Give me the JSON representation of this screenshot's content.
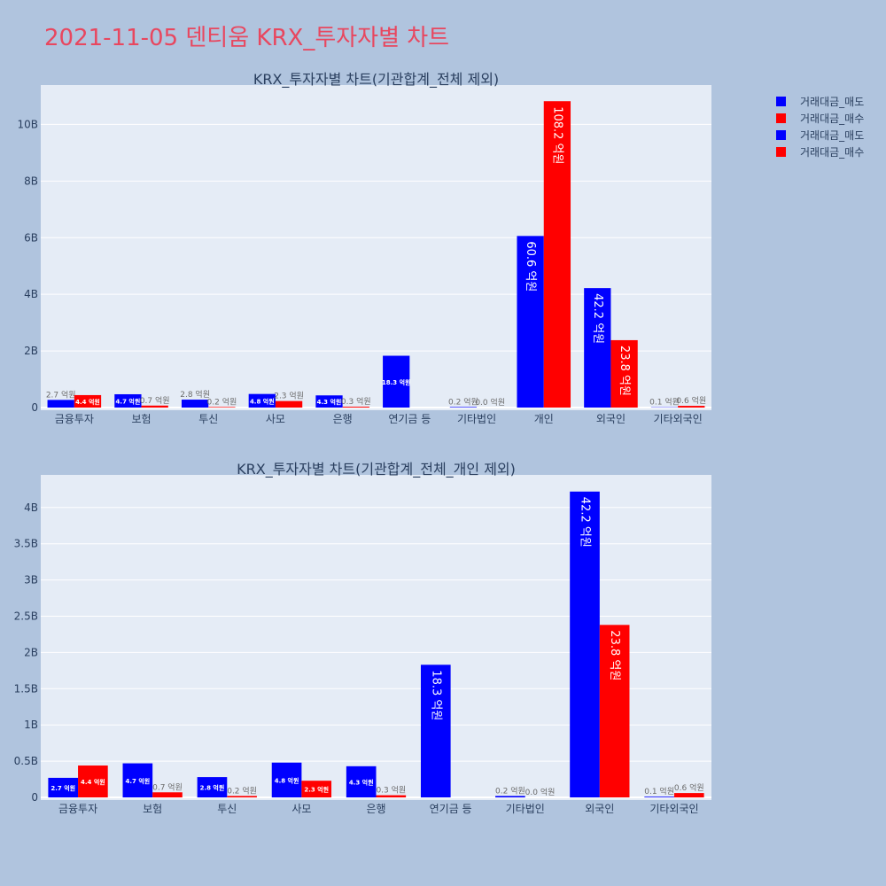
{
  "page": {
    "title": "2021-11-05 덴티움 KRX_투자자별 차트"
  },
  "legend": {
    "entries": [
      {
        "label": "거래대금_매도",
        "color": "#0000ff"
      },
      {
        "label": "거래대금_매수",
        "color": "#ff0000"
      },
      {
        "label": "거래대금_매도",
        "color": "#0000ff"
      },
      {
        "label": "거래대금_매수",
        "color": "#ff0000"
      }
    ]
  },
  "colors": {
    "sell": "#0000ff",
    "buy": "#ff0000",
    "plot_bg": "#e5ecf6",
    "page_bg": "#b0c4de"
  },
  "chart_data": [
    {
      "type": "bar",
      "title": "KRX_투자자별 차트(기관합계_전체 제외)",
      "categories": [
        "금융투자",
        "보험",
        "투신",
        "사모",
        "은행",
        "연기금 등",
        "기타법인",
        "개인",
        "외국인",
        "기타외국인"
      ],
      "series": [
        {
          "name": "거래대금_매도",
          "color": "#0000ff",
          "values": [
            270000000,
            470000000,
            280000000,
            480000000,
            430000000,
            1830000000,
            20000000,
            6060000000,
            4220000000,
            10000000
          ],
          "labels": [
            "2.7 억원",
            "4.7 억원",
            "2.8 억원",
            "4.8 억원",
            "4.3 억원",
            "18.3 억원",
            "0.2 억원",
            "60.6 억원",
            "42.2 억원",
            "0.1 억원"
          ]
        },
        {
          "name": "거래대금_매수",
          "color": "#ff0000",
          "values": [
            440000000,
            70000000,
            20000000,
            230000000,
            30000000,
            0,
            0,
            10820000000,
            2380000000,
            60000000
          ],
          "labels": [
            "4.4 억원",
            "0.7 억원",
            "0.2 억원",
            "2.3 억원",
            "0.3 억원",
            "",
            "0.0 억원",
            "108.2 억원",
            "23.8 억원",
            "0.6 억원"
          ]
        }
      ],
      "yticks": [
        {
          "value": 0,
          "label": "0"
        },
        {
          "value": 2000000000,
          "label": "2B"
        },
        {
          "value": 4000000000,
          "label": "4B"
        },
        {
          "value": 6000000000,
          "label": "6B"
        },
        {
          "value": 8000000000,
          "label": "8B"
        },
        {
          "value": 10000000000,
          "label": "10B"
        }
      ],
      "ylim": [
        0,
        11390000000
      ],
      "grid": true
    },
    {
      "type": "bar",
      "title": "KRX_투자자별 차트(기관합계_전체_개인 제외)",
      "categories": [
        "금융투자",
        "보험",
        "투신",
        "사모",
        "은행",
        "연기금 등",
        "기타법인",
        "외국인",
        "기타외국인"
      ],
      "series": [
        {
          "name": "거래대금_매도",
          "color": "#0000ff",
          "values": [
            270000000,
            470000000,
            280000000,
            480000000,
            430000000,
            1830000000,
            20000000,
            4220000000,
            10000000
          ],
          "labels": [
            "2.7 억원",
            "4.7 억원",
            "2.8 억원",
            "4.8 억원",
            "4.3 억원",
            "18.3 억원",
            "0.2 억원",
            "42.2 억원",
            "0.1 억원"
          ]
        },
        {
          "name": "거래대금_매수",
          "color": "#ff0000",
          "values": [
            440000000,
            70000000,
            20000000,
            230000000,
            30000000,
            0,
            0,
            2380000000,
            60000000
          ],
          "labels": [
            "4.4 억원",
            "0.7 억원",
            "0.2 억원",
            "2.3 억원",
            "0.3 억원",
            "",
            "0.0 억원",
            "23.8 억원",
            "0.6 억원"
          ]
        }
      ],
      "yticks": [
        {
          "value": 0,
          "label": "0"
        },
        {
          "value": 500000000,
          "label": "0.5B"
        },
        {
          "value": 1000000000,
          "label": "1B"
        },
        {
          "value": 1500000000,
          "label": "1.5B"
        },
        {
          "value": 2000000000,
          "label": "2B"
        },
        {
          "value": 2500000000,
          "label": "2.5B"
        },
        {
          "value": 3000000000,
          "label": "3B"
        },
        {
          "value": 3500000000,
          "label": "3.5B"
        },
        {
          "value": 4000000000,
          "label": "4B"
        }
      ],
      "ylim": [
        0,
        4450000000
      ],
      "grid": true
    }
  ]
}
